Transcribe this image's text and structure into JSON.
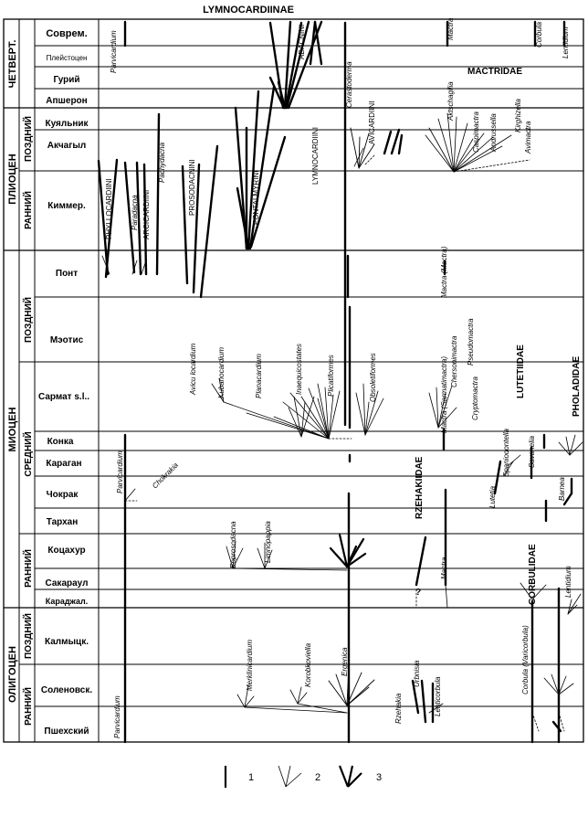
{
  "title": "LYMNOCARDIINAE",
  "periods": [
    {
      "name": "ЧЕТВЕРТ."
    },
    {
      "name": "ПЛИОЦЕН"
    },
    {
      "name": "МИОЦЕН"
    },
    {
      "name": "ОЛИГОЦЕН"
    }
  ],
  "epochs": [
    "ПОЗДНИЙ",
    "РАННИЙ",
    "ПОЗДНИЙ",
    "СРЕДНИЙ",
    "РАННИЙ",
    "ПОЗДНИЙ",
    "РАННИЙ"
  ],
  "stages": [
    "Соврем.",
    "Плейстоцен",
    "Гурий",
    "Апшерон",
    "Куяльник",
    "Акчагыл",
    "Киммер.",
    "Понт",
    "Мэотис",
    "Сармат s.l..",
    "Конка",
    "Караган",
    "Чокрак",
    "Тархан",
    "Коцахур",
    "Сакараул",
    "Караджал.",
    "Калмыцк.",
    "Соленовск.",
    "Пшехский"
  ],
  "families": [
    "MACTRIDAE",
    "LUTETIIDAE",
    "PHOLADIDAE",
    "RZEHAKIIDAE",
    "CORBULIDAE"
  ],
  "groups": [
    "PHYLLOCARDIINI",
    "ARCICARDIINI",
    "PROSODACNINI",
    "PONTALMYRINI",
    "LYMNOCARDIINI",
    "ADACNINI",
    "AVICARDIINI"
  ],
  "taxa": [
    "Parvicardium",
    "Paradacna",
    "Pachydacna",
    "Cerastoderma",
    "Aktschagilia",
    "Caspimactra",
    "Andrussella",
    "Kirghizella",
    "Avimactra",
    "Mactra",
    "Corbula",
    "Lentidium",
    "Mactra (Mactra)",
    "Avicu locardium",
    "Kubanocardium",
    "Planacardium",
    "Inaequicostates",
    "Plicatiformes",
    "Obsoletiformes",
    "Mactra (Sarmatimactra)",
    "Chersonimactra",
    "Pseudomactra",
    "Cryptomactra",
    "Spaniodontella",
    "Savanelia",
    "Barnea",
    "Chokrakia",
    "Lutetia",
    "Eoprosodacna",
    "Limnopappia",
    "Merklinicardium",
    "Korobkoviella",
    "Ergenica",
    "Rzehakia",
    "Urbnisia",
    "Lenticorbula",
    "Corbula (Varicorbula)"
  ],
  "legend": [
    {
      "label": "1"
    },
    {
      "label": "2"
    },
    {
      "label": "3"
    }
  ],
  "question_mark": "?"
}
